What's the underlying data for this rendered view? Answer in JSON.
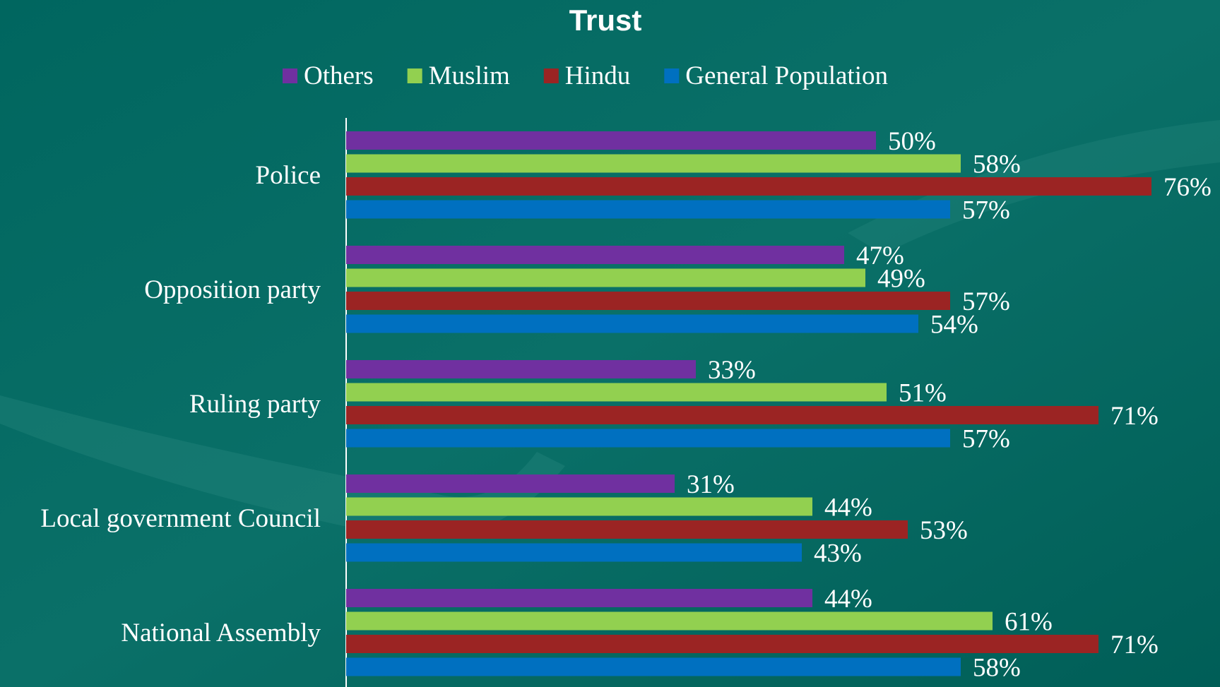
{
  "chart_data": {
    "type": "bar",
    "orientation": "horizontal",
    "title": "Trust",
    "categories": [
      "Police",
      "Opposition party",
      "Ruling party",
      "Local government Council",
      "National Assembly"
    ],
    "series": [
      {
        "name": "Others",
        "color": "#7030a0",
        "values": [
          50,
          47,
          33,
          31,
          44
        ],
        "value_labels": [
          "50%",
          "47%",
          "33%",
          "31%",
          "44%"
        ]
      },
      {
        "name": "Muslim",
        "color": "#92d050",
        "values": [
          58,
          49,
          51,
          44,
          61
        ],
        "value_labels": [
          "58%",
          "49%",
          "51%",
          "44%",
          "61%"
        ]
      },
      {
        "name": "Hindu",
        "color": "#9b2423",
        "values": [
          76,
          57,
          71,
          53,
          71
        ],
        "value_labels": [
          "76%",
          "57%",
          "71%",
          "53%",
          "71%"
        ]
      },
      {
        "name": "General Population",
        "color": "#0070c0",
        "values": [
          57,
          54,
          57,
          43,
          58
        ],
        "value_labels": [
          "57%",
          "54%",
          "57%",
          "43%",
          "58%"
        ]
      }
    ],
    "legend": "top"
  }
}
